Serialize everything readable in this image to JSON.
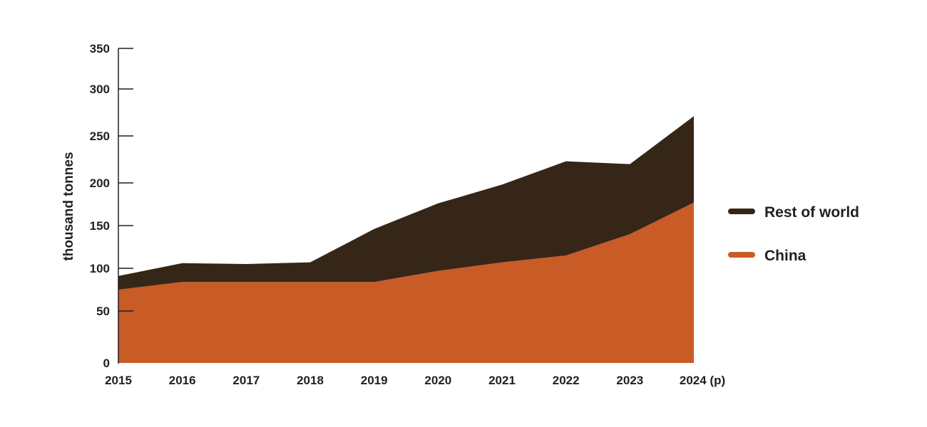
{
  "chart_data": {
    "type": "area",
    "stacked": true,
    "title": "",
    "xlabel": "",
    "ylabel": "thousand tonnes",
    "categories": [
      "2015",
      "2016",
      "2017",
      "2018",
      "2019",
      "2020",
      "2021",
      "2022",
      "2023",
      "2024 (p)"
    ],
    "series": [
      {
        "name": "China",
        "color": "#C95B27",
        "values": [
          75,
          84,
          84,
          84,
          84,
          97,
          107,
          115,
          140,
          177
        ]
      },
      {
        "name": "Rest of world",
        "color": "#352617",
        "values": [
          16,
          22,
          21,
          23,
          62,
          79,
          91,
          108,
          80,
          94
        ]
      }
    ],
    "yticks": [
      "0",
      "50",
      "100",
      "150",
      "200",
      "250",
      "300",
      "350"
    ],
    "ylim": [
      0,
      350
    ],
    "grid": false,
    "legend": {
      "placement": "right",
      "entries": [
        "Rest of world",
        "China"
      ]
    }
  }
}
